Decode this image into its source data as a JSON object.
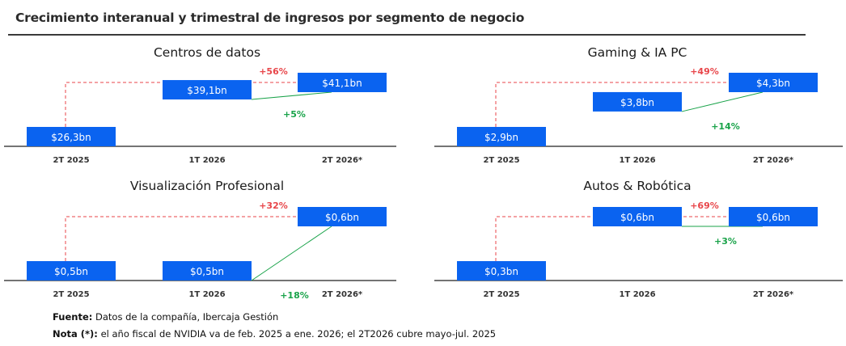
{
  "title": "Crecimiento interanual y trimestral de ingresos por segmento de negocio",
  "colors": {
    "bar": "#0a63f0",
    "yoy": "#e8464a",
    "qoq": "#1aa34a",
    "axis": "#222222",
    "period_label": "#333333"
  },
  "chart_data": [
    {
      "type": "bar",
      "title": "Centros de datos",
      "categories": [
        "2T 2025",
        "1T 2026",
        "2T 2026*"
      ],
      "values": [
        26.3,
        39.1,
        41.1
      ],
      "value_labels": [
        "$26,3bn",
        "$39,1bn",
        "$41,1bn"
      ],
      "yoy_label": "+56%",
      "qoq_label": "+5%"
    },
    {
      "type": "bar",
      "title": "Gaming & IA PC",
      "categories": [
        "2T 2025",
        "1T 2026",
        "2T 2026*"
      ],
      "values": [
        2.9,
        3.8,
        4.3
      ],
      "value_labels": [
        "$2,9bn",
        "$3,8bn",
        "$4,3bn"
      ],
      "yoy_label": "+49%",
      "qoq_label": "+14%"
    },
    {
      "type": "bar",
      "title": "Visualización Profesional",
      "categories": [
        "2T 2025",
        "1T 2026",
        "2T 2026*"
      ],
      "values": [
        0.5,
        0.5,
        0.6
      ],
      "value_labels": [
        "$0,5bn",
        "$0,5bn",
        "$0,6bn"
      ],
      "yoy_label": "+32%",
      "qoq_label": "+18%"
    },
    {
      "type": "bar",
      "title": "Autos & Robótica",
      "categories": [
        "2T 2025",
        "1T 2026",
        "2T 2026*"
      ],
      "values": [
        0.3,
        0.6,
        0.6
      ],
      "value_labels": [
        "$0,3bn",
        "$0,6bn",
        "$0,6bn"
      ],
      "yoy_label": "+69%",
      "qoq_label": "+3%"
    }
  ],
  "footer": {
    "source_label": "Fuente:",
    "source_text": "Datos de la compañía, Ibercaja Gestión",
    "note_label": "Nota (*):",
    "note_text": "el año fiscal de NVIDIA va de feb. 2025 a ene. 2026; el 2T2026 cubre mayo-jul. 2025"
  }
}
